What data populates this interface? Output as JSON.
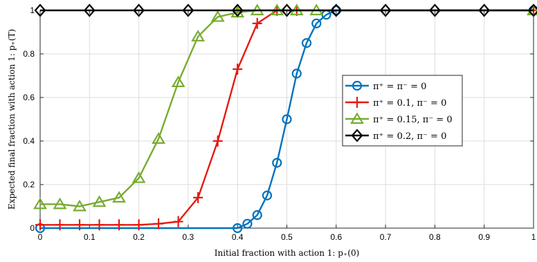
{
  "chart_data": {
    "type": "line",
    "title": "",
    "xlabel": "Initial fraction with action 1: p₊(0)",
    "ylabel": "Expected final fraction with action 1: p₊(T)",
    "xlim": [
      0,
      1
    ],
    "ylim": [
      0,
      1
    ],
    "xticks": [
      0,
      0.1,
      0.2,
      0.3,
      0.4,
      0.5,
      0.6,
      0.7,
      0.8,
      0.9,
      1
    ],
    "xtick_labels": [
      "0",
      "0.1",
      "0.2",
      "0.3",
      "0.4",
      "0.5",
      "0.6",
      "0.7",
      "0.8",
      "0.9",
      "1"
    ],
    "yticks": [
      0,
      0.2,
      0.4,
      0.6,
      0.8,
      1
    ],
    "ytick_labels": [
      "0",
      "0.2",
      "0.4",
      "0.6",
      "0.8",
      "1"
    ],
    "grid": true,
    "legend_position": "right",
    "series": [
      {
        "name": "π⁺ = π⁻ = 0",
        "color": "#0072BD",
        "marker": "circle",
        "x": [
          0,
          0.4,
          0.42,
          0.44,
          0.46,
          0.48,
          0.5,
          0.52,
          0.54,
          0.56,
          0.58,
          0.6,
          1
        ],
        "y": [
          0,
          0,
          0.02,
          0.06,
          0.15,
          0.3,
          0.5,
          0.71,
          0.85,
          0.94,
          0.98,
          1,
          1
        ]
      },
      {
        "name": "π⁺ = 0.1, π⁻ = 0",
        "color": "#E6190F",
        "marker": "plus",
        "x": [
          0,
          0.04,
          0.08,
          0.12,
          0.16,
          0.2,
          0.24,
          0.28,
          0.32,
          0.36,
          0.4,
          0.44,
          0.48,
          0.52,
          1
        ],
        "y": [
          0.015,
          0.015,
          0.015,
          0.015,
          0.015,
          0.015,
          0.02,
          0.03,
          0.14,
          0.4,
          0.73,
          0.94,
          1,
          1,
          1
        ]
      },
      {
        "name": "π⁺ = 0.15, π⁻ = 0",
        "color": "#77AC30",
        "marker": "triangle",
        "x": [
          0,
          0.04,
          0.08,
          0.12,
          0.16,
          0.2,
          0.24,
          0.28,
          0.32,
          0.36,
          0.4,
          0.44,
          0.48,
          0.52,
          0.56,
          1
        ],
        "y": [
          0.11,
          0.11,
          0.1,
          0.12,
          0.14,
          0.23,
          0.41,
          0.67,
          0.88,
          0.97,
          0.99,
          1,
          1,
          1,
          1,
          1
        ]
      },
      {
        "name": "π⁺ = 0.2, π⁻ = 0",
        "color": "#000000",
        "marker": "diamond",
        "x": [
          0,
          0.1,
          0.2,
          0.3,
          0.4,
          0.5,
          0.6,
          0.7,
          0.8,
          0.9,
          1
        ],
        "y": [
          1,
          1,
          1,
          1,
          1,
          1,
          1,
          1,
          1,
          1,
          1
        ]
      }
    ]
  }
}
